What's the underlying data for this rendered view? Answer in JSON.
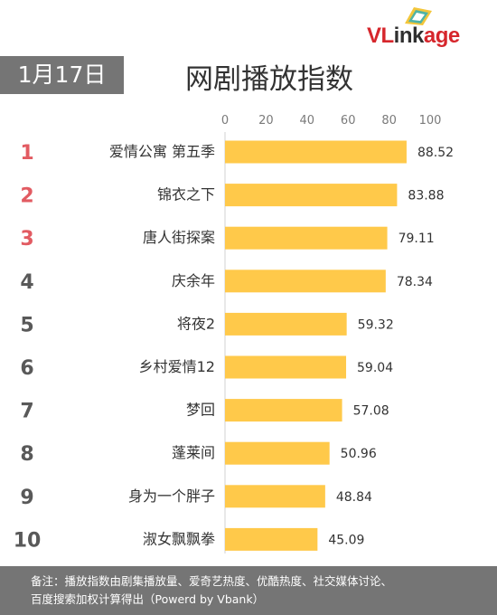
{
  "header": {
    "date": "1月17日",
    "title": "网剧播放指数",
    "logo": {
      "text_red": "VL",
      "text_dark": "ink",
      "text_red2": "age"
    }
  },
  "chart_data": {
    "type": "bar",
    "orientation": "horizontal",
    "title": "网剧播放指数",
    "xlim": [
      0,
      100
    ],
    "x_ticks": [
      0,
      20,
      40,
      60,
      80,
      100
    ],
    "ranks": [
      "1",
      "2",
      "3",
      "4",
      "5",
      "6",
      "7",
      "8",
      "9",
      "10"
    ],
    "categories": [
      "爱情公寓 第五季",
      "锦衣之下",
      "唐人街探案",
      "庆余年",
      "将夜2",
      "乡村爱情12",
      "梦回",
      "蓬莱间",
      "身为一个胖子",
      "淑女飘飘拳"
    ],
    "values": [
      88.52,
      83.88,
      79.11,
      78.34,
      59.32,
      59.04,
      57.08,
      50.96,
      48.84,
      45.09
    ],
    "value_labels": [
      "88.52",
      "83.88",
      "79.11",
      "78.34",
      "59.32",
      "59.04",
      "57.08",
      "50.96",
      "48.84",
      "45.09"
    ],
    "bar_color": "#ffc94a",
    "rank_colors": {
      "top3": "#e25b62",
      "rest": "#595959"
    }
  },
  "footer": {
    "line1": "备注：播放指数由剧集播放量、爱奇艺热度、优酷热度、社交媒体讨论、",
    "line2": "百度搜索加权计算得出（Powerd by Vbank）"
  }
}
